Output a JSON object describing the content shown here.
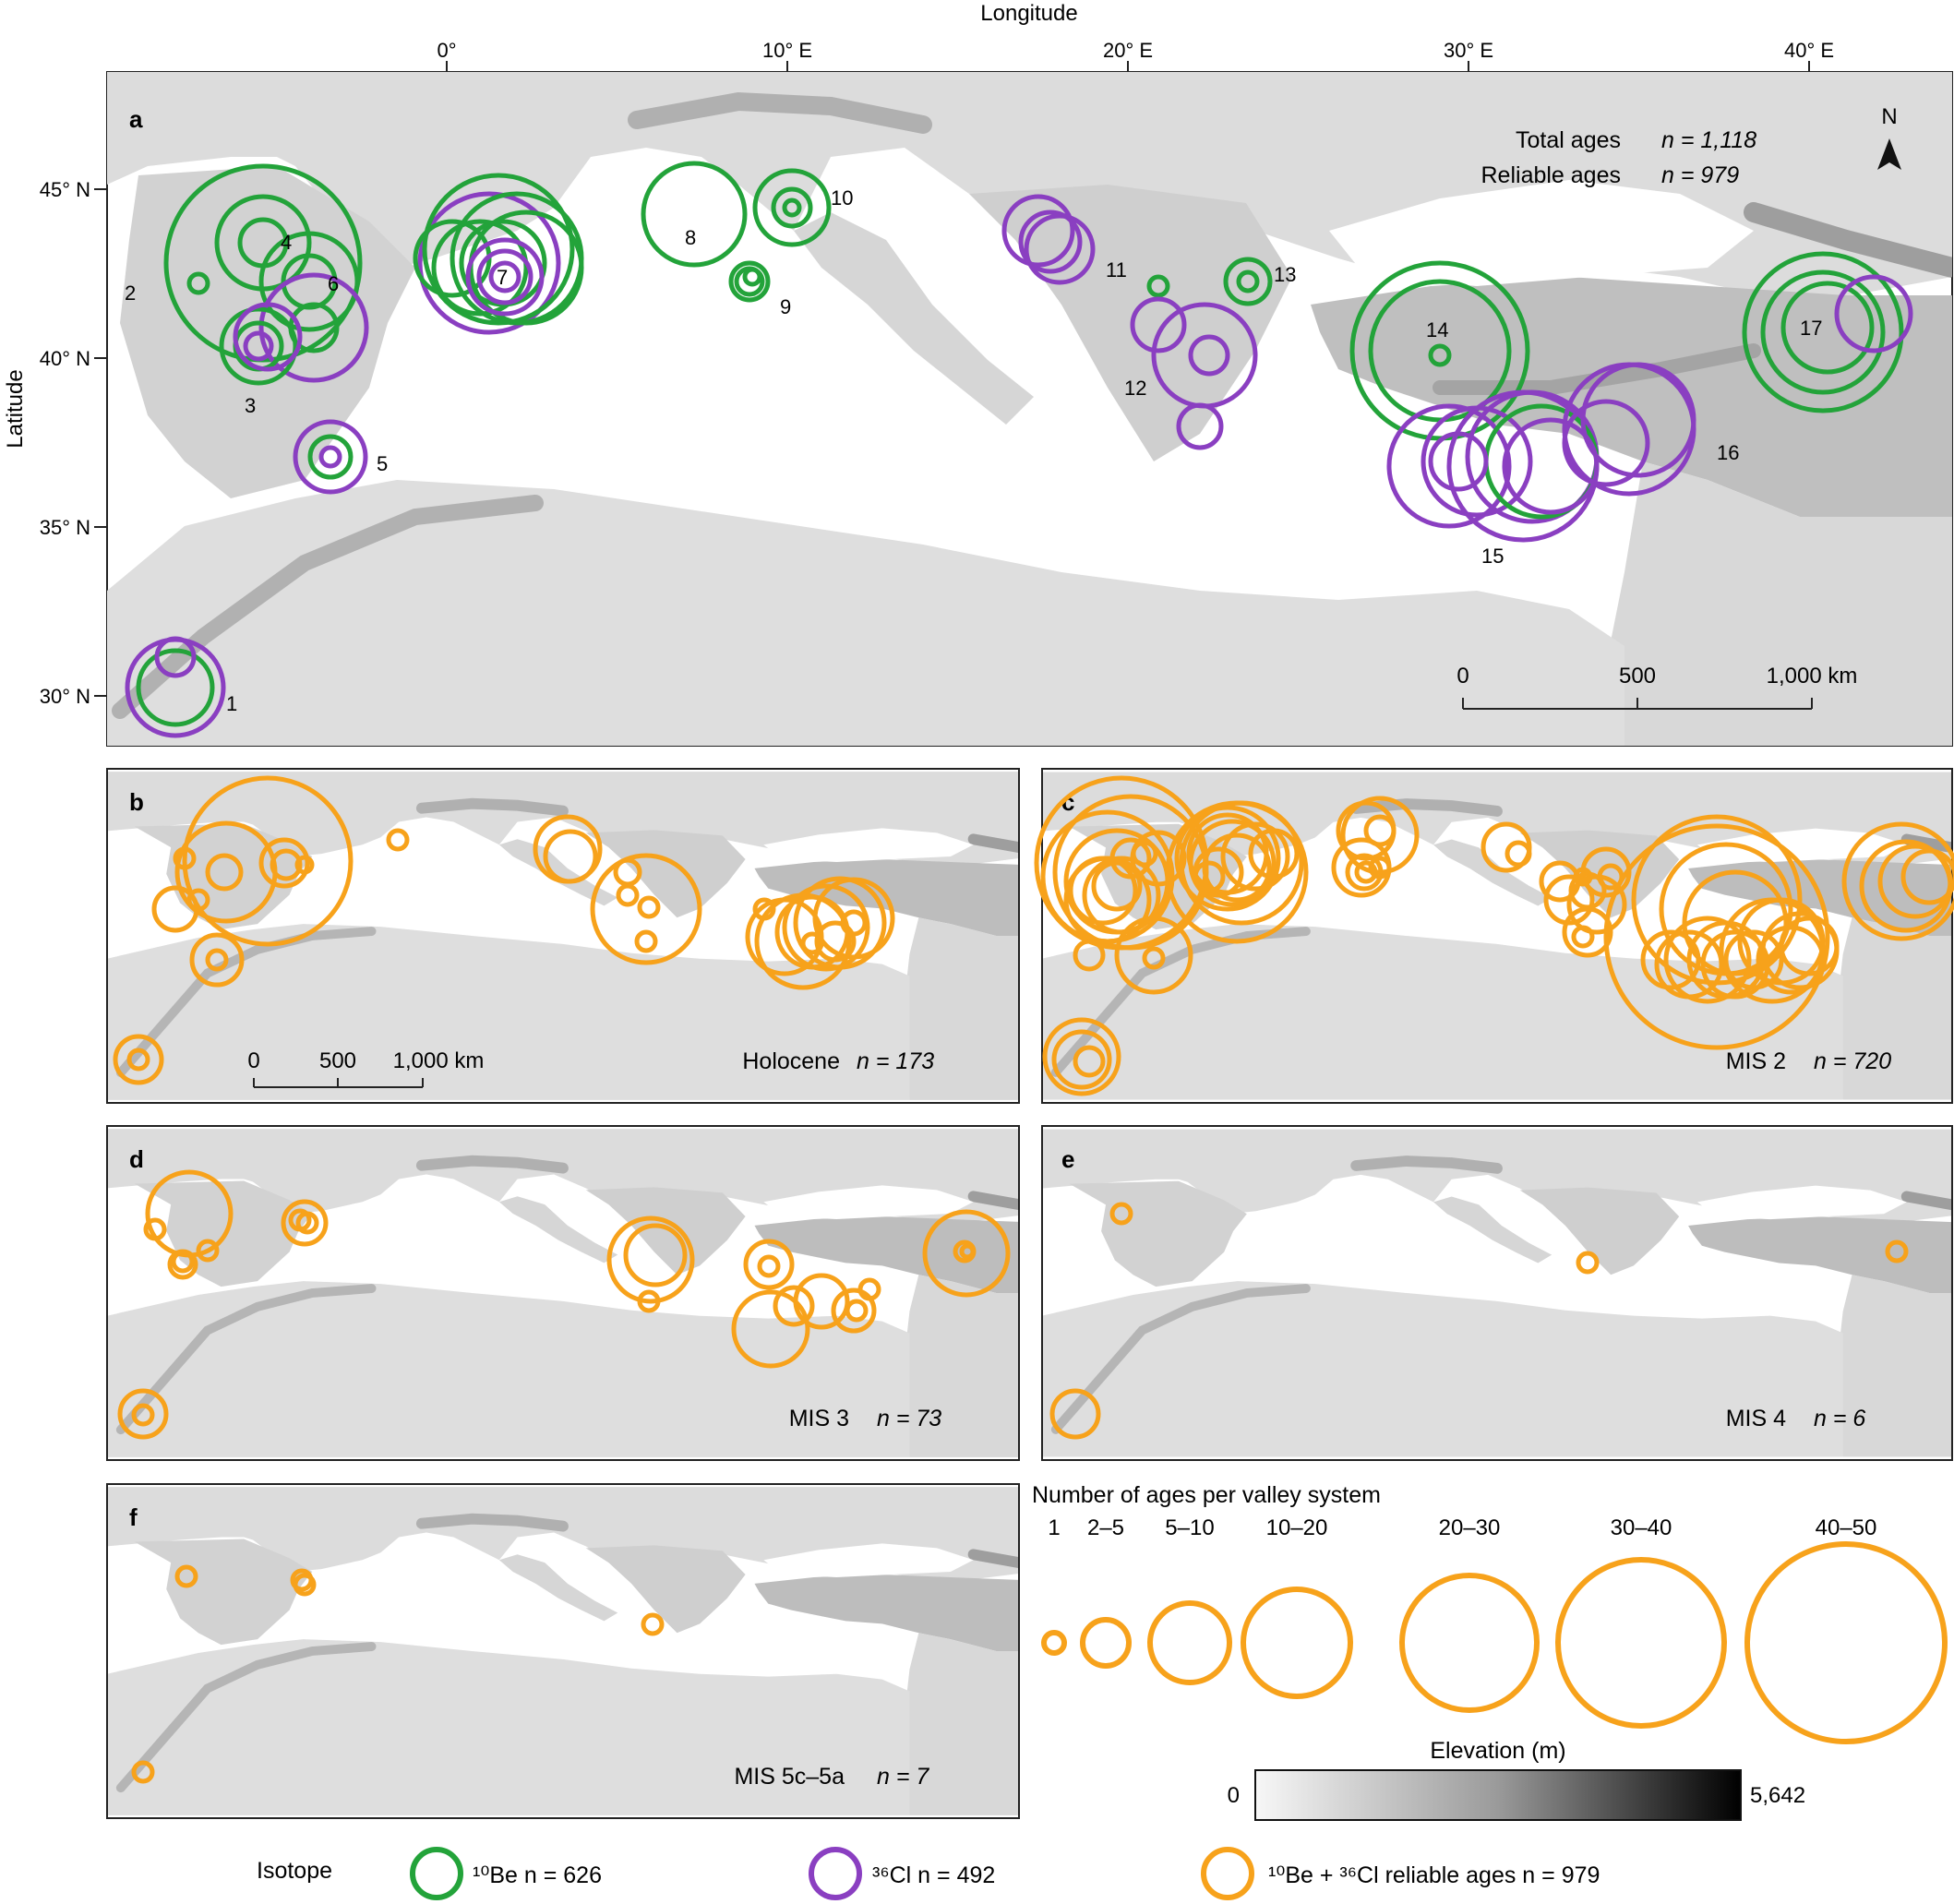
{
  "colors": {
    "be10": "#23a33a",
    "cl36": "#8a3fc1",
    "combined": "#f7a21b",
    "land_light": "#eaeaea",
    "land_mid": "#cfcfcf",
    "land_dark": "#8a8a8a",
    "sea": "#ffffff",
    "frame": "#222222"
  },
  "axes": {
    "x_title": "Longitude",
    "y_title": "Latitude",
    "lon_ticks": [
      "0°",
      "10° E",
      "20° E",
      "30° E",
      "40° E"
    ],
    "lat_ticks": [
      "45° N",
      "40° N",
      "35° N",
      "30° N"
    ]
  },
  "panel_a": {
    "letter": "a",
    "total_label": "Total ages",
    "total_value": "n = 1,118",
    "reliable_label": "Reliable ages",
    "reliable_value": "n = 979",
    "north_label": "N",
    "scale": [
      "0",
      "500",
      "1,000 km"
    ],
    "site_numbers": [
      "1",
      "2",
      "3",
      "4",
      "5",
      "6",
      "7",
      "8",
      "9",
      "10",
      "11",
      "12",
      "13",
      "14",
      "15",
      "16",
      "17"
    ]
  },
  "panels": [
    {
      "id": "b",
      "letter": "b",
      "period": "Holocene",
      "n": "n = 173",
      "scale": [
        "0",
        "500",
        "1,000 km"
      ]
    },
    {
      "id": "c",
      "letter": "c",
      "period": "MIS 2",
      "n": "n = 720"
    },
    {
      "id": "d",
      "letter": "d",
      "period": "MIS 3",
      "n": "n = 73"
    },
    {
      "id": "e",
      "letter": "e",
      "period": "MIS 4",
      "n": "n = 6"
    },
    {
      "id": "f",
      "letter": "f",
      "period": "MIS 5c–5a",
      "n": "n = 7"
    }
  ],
  "size_legend": {
    "title": "Number of ages per valley system",
    "classes": [
      "1",
      "2–5",
      "5–10",
      "10–20",
      "20–30",
      "30–40",
      "40–50"
    ]
  },
  "elevation_legend": {
    "title": "Elevation (m)",
    "min": "0",
    "max": "5,642"
  },
  "isotope_legend": {
    "title": "Isotope",
    "be10": "¹⁰Be n = 626",
    "cl36": "³⁶Cl n = 492",
    "combined": "¹⁰Be + ³⁶Cl reliable ages n = 979"
  },
  "chart_data": {
    "type": "map",
    "extent_lon": [
      -10,
      44
    ],
    "extent_lat": [
      28.5,
      48.5
    ],
    "panel_a_sites": [
      {
        "site": "1",
        "lon": -7.9,
        "lat": 31.1,
        "isotopes": [
          "10Be",
          "36Cl"
        ]
      },
      {
        "site": "2",
        "lon": -7.3,
        "lat": 42.2,
        "isotopes": [
          "10Be"
        ]
      },
      {
        "site": "3",
        "lon": -5.5,
        "lat": 40.3,
        "isotopes": [
          "10Be",
          "36Cl"
        ]
      },
      {
        "site": "4",
        "lon": -5.3,
        "lat": 43.0,
        "isotopes": [
          "10Be"
        ]
      },
      {
        "site": "5",
        "lon": -3.5,
        "lat": 37.1,
        "isotopes": [
          "10Be",
          "36Cl"
        ]
      },
      {
        "site": "6",
        "lon": -3.6,
        "lat": 41.8,
        "isotopes": [
          "10Be",
          "36Cl"
        ]
      },
      {
        "site": "7",
        "lon": 1.5,
        "lat": 42.6,
        "isotopes": [
          "10Be",
          "36Cl"
        ]
      },
      {
        "site": "8",
        "lon": 7.0,
        "lat": 44.3,
        "isotopes": [
          "10Be"
        ]
      },
      {
        "site": "9",
        "lon": 9.1,
        "lat": 42.1,
        "isotopes": [
          "10Be"
        ]
      },
      {
        "site": "10",
        "lon": 10.1,
        "lat": 44.4,
        "isotopes": [
          "10Be"
        ]
      },
      {
        "site": "11",
        "lon": 17.8,
        "lat": 43.6,
        "isotopes": [
          "36Cl"
        ]
      },
      {
        "site": "12",
        "lon": 21.5,
        "lat": 40.0,
        "isotopes": [
          "10Be",
          "36Cl"
        ]
      },
      {
        "site": "13",
        "lon": 23.4,
        "lat": 42.2,
        "isotopes": [
          "10Be"
        ]
      },
      {
        "site": "14",
        "lon": 29.1,
        "lat": 40.1,
        "isotopes": [
          "10Be"
        ]
      },
      {
        "site": "15",
        "lon": 31.5,
        "lat": 37.0,
        "isotopes": [
          "10Be",
          "36Cl"
        ]
      },
      {
        "site": "16",
        "lon": 34.5,
        "lat": 37.5,
        "isotopes": [
          "36Cl"
        ]
      },
      {
        "site": "17",
        "lon": 40.6,
        "lat": 40.9,
        "isotopes": [
          "10Be",
          "36Cl"
        ]
      }
    ],
    "isotope_totals": {
      "10Be": 626,
      "36Cl": 492,
      "reliable_combined": 979,
      "total": 1118
    },
    "period_totals": [
      {
        "period": "Holocene",
        "n": 173
      },
      {
        "period": "MIS 2",
        "n": 720
      },
      {
        "period": "MIS 3",
        "n": 73
      },
      {
        "period": "MIS 4",
        "n": 6
      },
      {
        "period": "MIS 5c–5a",
        "n": 7
      }
    ],
    "size_classes": [
      "1",
      "2–5",
      "5–10",
      "10–20",
      "20–30",
      "30–40",
      "40–50"
    ]
  }
}
